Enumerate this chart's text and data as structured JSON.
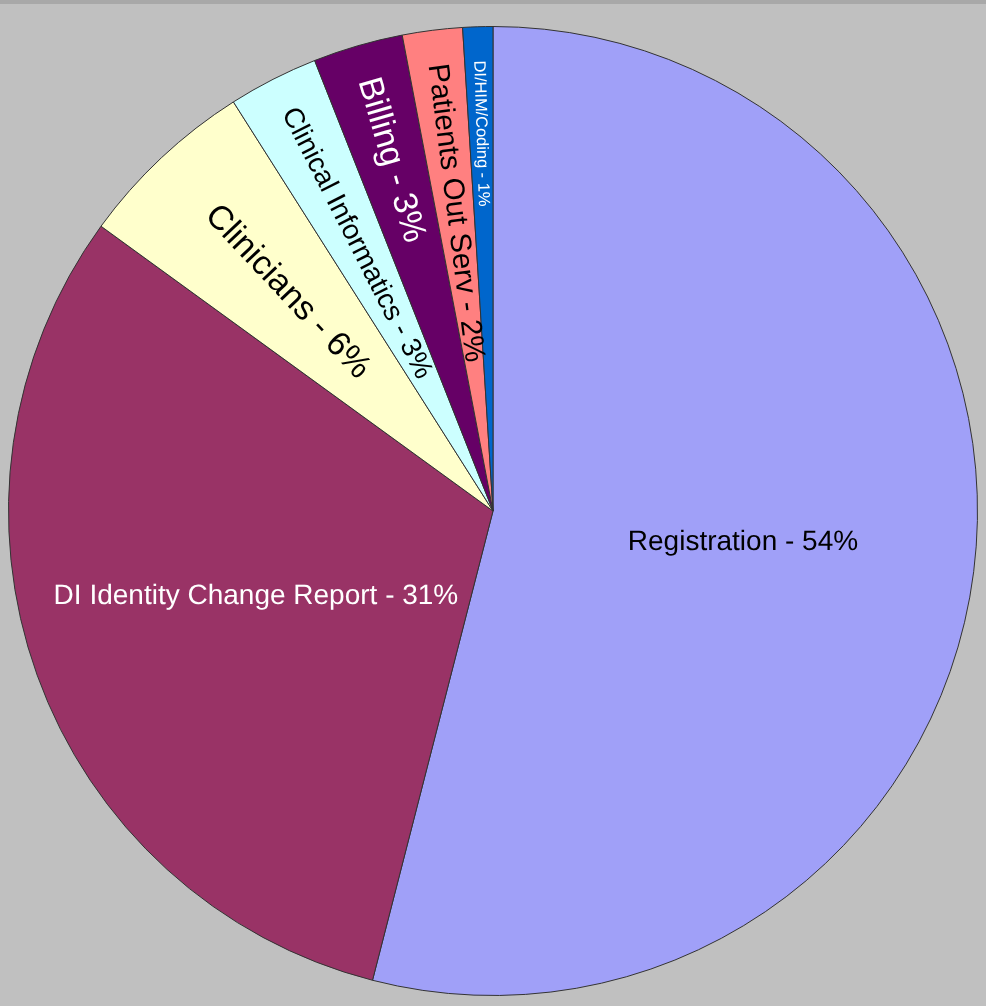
{
  "chart_data": {
    "type": "pie",
    "categories": [
      "Registration - 54%",
      "DI Identity Change Report - 31%",
      "Clinicians - 6%",
      "Clinical Informatics - 3%",
      "Billing - 3%",
      "Patients Out Serv - 2%",
      "DI/HIM/Coding - 1%"
    ],
    "values": [
      54,
      31,
      6,
      3,
      3,
      2,
      1
    ],
    "colors": [
      "#a0a0f8",
      "#993366",
      "#ffffcc",
      "#ccffff",
      "#660066",
      "#ff8080",
      "#0066cc"
    ],
    "legend": false
  }
}
